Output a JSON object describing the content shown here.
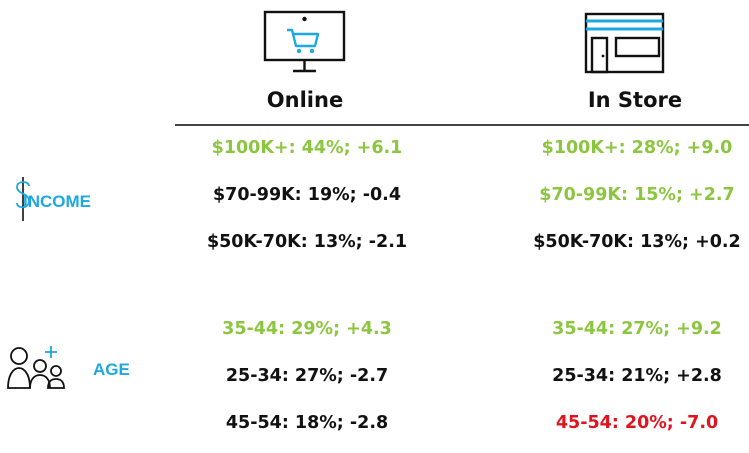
{
  "colors": {
    "green": "#8cc63f",
    "black": "#111111",
    "red": "#e0141e",
    "blue": "#1ea8e0",
    "icon_stroke": "#111111"
  },
  "columns": {
    "online": {
      "label": "Online",
      "icon": "computer-cart-icon"
    },
    "in_store": {
      "label": "In Store",
      "icon": "storefront-icon"
    }
  },
  "sections": {
    "income": {
      "label": "INCOME",
      "icon": "dollar-icon",
      "online": [
        {
          "text": "$100K+: 44%; +6.1",
          "status": "green"
        },
        {
          "text": "$70-99K: 19%; -0.4",
          "status": "black"
        },
        {
          "text": "$50K-70K: 13%; -2.1",
          "status": "black"
        }
      ],
      "in_store": [
        {
          "text": "$100K+: 28%; +9.0",
          "status": "green"
        },
        {
          "text": "$70-99K: 15%; +2.7",
          "status": "green"
        },
        {
          "text": "$50K-70K: 13%; +0.2",
          "status": "black"
        }
      ]
    },
    "age": {
      "label": "AGE",
      "icon": "people-add-icon",
      "online": [
        {
          "text": "35-44: 29%; +4.3",
          "status": "green"
        },
        {
          "text": "25-34: 27%; -2.7",
          "status": "black"
        },
        {
          "text": "45-54: 18%; -2.8",
          "status": "black"
        }
      ],
      "in_store": [
        {
          "text": "35-44: 27%; +9.2",
          "status": "green"
        },
        {
          "text": "25-34: 21%; +2.8",
          "status": "black"
        },
        {
          "text": "45-54: 20%; -7.0",
          "status": "red"
        }
      ]
    }
  }
}
